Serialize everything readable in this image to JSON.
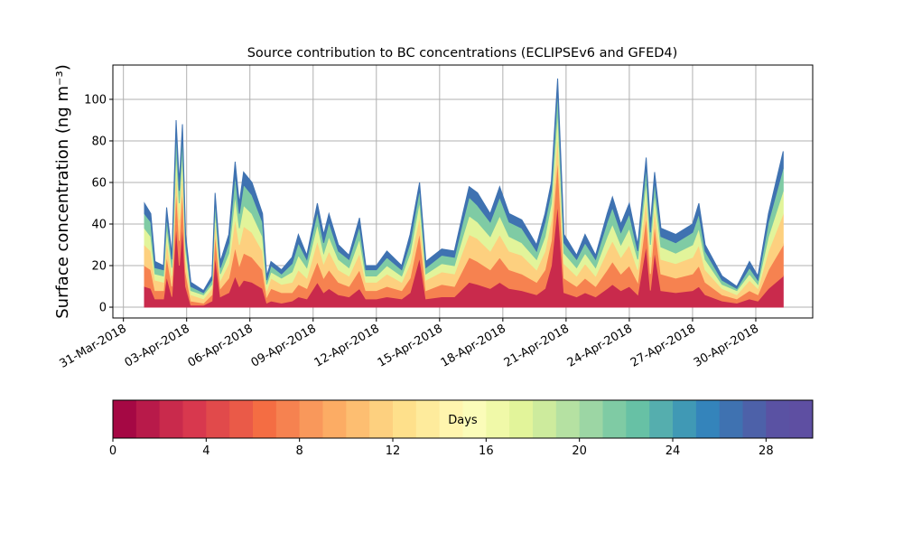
{
  "chart_data": {
    "type": "stacked_area",
    "title": "Source contribution to BC concentrations (ECLIPSEv6 and GFED4)",
    "y_label": "Surface concentration (ng m⁻³)",
    "x": [
      1.0,
      1.3,
      1.5,
      1.9,
      2.05,
      2.3,
      2.5,
      2.65,
      2.8,
      2.95,
      3.2,
      3.8,
      4.2,
      4.35,
      4.6,
      5.0,
      5.3,
      5.5,
      5.7,
      6.1,
      6.6,
      6.8,
      7.0,
      7.5,
      8.0,
      8.3,
      8.7,
      9.2,
      9.5,
      9.75,
      10.2,
      10.7,
      11.2,
      11.5,
      12.0,
      12.5,
      13.2,
      13.6,
      14.05,
      14.35,
      15.1,
      15.7,
      16.1,
      16.4,
      16.8,
      17.4,
      17.85,
      18.3,
      18.9,
      19.6,
      20.0,
      20.3,
      20.6,
      20.9,
      21.5,
      21.9,
      22.4,
      22.95,
      23.2,
      23.6,
      24.0,
      24.4,
      24.8,
      25.0,
      25.2,
      25.5,
      26.2,
      27.0,
      27.3,
      27.6,
      28.4,
      29.1,
      29.7,
      30.1,
      30.6,
      31.3
    ],
    "series": [
      {
        "color": "#c92a4c",
        "values": [
          10,
          9,
          4,
          4,
          15,
          5,
          40,
          20,
          40,
          10,
          1,
          1,
          3,
          25,
          5,
          7,
          15,
          10,
          13,
          12,
          9,
          2,
          3,
          2,
          3,
          5,
          4,
          12,
          7,
          9,
          6,
          5,
          9,
          4,
          4,
          5,
          4,
          7,
          24,
          4,
          5,
          5,
          9,
          12,
          11,
          9,
          12,
          9,
          8,
          6,
          9,
          20,
          50,
          7,
          5,
          7,
          5,
          9,
          11,
          8,
          10,
          6,
          30,
          8,
          27,
          8,
          7,
          8,
          10,
          6,
          3,
          2,
          4,
          3,
          9,
          15
        ]
      },
      {
        "color": "#f68250",
        "values": [
          10,
          9,
          4,
          4,
          10,
          5,
          18,
          12,
          18,
          7,
          2,
          1,
          3,
          11,
          4,
          7,
          14,
          10,
          13,
          12,
          9,
          3,
          6,
          5,
          4,
          6,
          5,
          10,
          7,
          9,
          6,
          5,
          9,
          4,
          4,
          5,
          4,
          7,
          12,
          4,
          6,
          5,
          9,
          12,
          11,
          9,
          12,
          9,
          8,
          6,
          9,
          12,
          22,
          7,
          5,
          7,
          5,
          9,
          11,
          8,
          10,
          6,
          14,
          8,
          13,
          8,
          7,
          8,
          10,
          6,
          3,
          2,
          4,
          3,
          9,
          15
        ]
      },
      {
        "color": "#fdd07f",
        "values": [
          10,
          9,
          5,
          4,
          8,
          5,
          9,
          10,
          9,
          6,
          3,
          2,
          3,
          6,
          4,
          7,
          14,
          10,
          13,
          12,
          9,
          3,
          5,
          4,
          5,
          7,
          5,
          10,
          7,
          9,
          6,
          5,
          8,
          4,
          4,
          6,
          4,
          7,
          8,
          5,
          6,
          6,
          9,
          11,
          11,
          9,
          11,
          9,
          9,
          6,
          9,
          10,
          12,
          7,
          5,
          7,
          5,
          9,
          10,
          8,
          10,
          6,
          9,
          8,
          8,
          7,
          7,
          8,
          10,
          6,
          3,
          2,
          5,
          3,
          9,
          15
        ]
      },
      {
        "color": "#e2f49a",
        "values": [
          8,
          7,
          3,
          3,
          6,
          4,
          9,
          8,
          9,
          5,
          2,
          2,
          2,
          5,
          3,
          5,
          11,
          8,
          10,
          9,
          7,
          3,
          3,
          3,
          5,
          7,
          5,
          8,
          5,
          7,
          5,
          4,
          7,
          3,
          3,
          4,
          3,
          5,
          7,
          3,
          4,
          4,
          7,
          9,
          8,
          7,
          9,
          7,
          6,
          5,
          7,
          8,
          11,
          5,
          4,
          5,
          4,
          7,
          8,
          6,
          8,
          5,
          8,
          6,
          7,
          6,
          5,
          6,
          8,
          5,
          2,
          2,
          3,
          2,
          7,
          11
        ]
      },
      {
        "color": "#7fcba4",
        "values": [
          7,
          7,
          3,
          3,
          5,
          4,
          9,
          6,
          8,
          4,
          2,
          1,
          2,
          5,
          3,
          5,
          10,
          7,
          10,
          9,
          7,
          2,
          3,
          2,
          4,
          6,
          4,
          6,
          5,
          7,
          4,
          4,
          6,
          3,
          3,
          4,
          3,
          5,
          6,
          3,
          4,
          4,
          7,
          9,
          8,
          7,
          9,
          7,
          7,
          4,
          7,
          6,
          10,
          5,
          4,
          5,
          4,
          7,
          8,
          6,
          7,
          4,
          7,
          6,
          6,
          5,
          5,
          6,
          7,
          4,
          2,
          1,
          3,
          2,
          7,
          11
        ]
      },
      {
        "color": "#3f72b1",
        "values": [
          5,
          4,
          3,
          2,
          4,
          2,
          5,
          4,
          4,
          3,
          2,
          1,
          2,
          3,
          3,
          4,
          6,
          5,
          6,
          6,
          4,
          2,
          2,
          2,
          3,
          4,
          2,
          4,
          4,
          4,
          3,
          2,
          4,
          2,
          2,
          3,
          2,
          4,
          3,
          3,
          3,
          3,
          4,
          5,
          6,
          4,
          5,
          4,
          4,
          3,
          4,
          4,
          5,
          4,
          2,
          4,
          2,
          4,
          5,
          4,
          5,
          3,
          4,
          4,
          4,
          4,
          4,
          4,
          5,
          3,
          2,
          1,
          3,
          2,
          4,
          8
        ]
      }
    ],
    "xlim": [
      -0.5,
      32.7
    ],
    "xticks": [
      {
        "value": 0,
        "label": "31-Mar-2018"
      },
      {
        "value": 3,
        "label": "03-Apr-2018"
      },
      {
        "value": 6,
        "label": "06-Apr-2018"
      },
      {
        "value": 9,
        "label": "09-Apr-2018"
      },
      {
        "value": 12,
        "label": "12-Apr-2018"
      },
      {
        "value": 15,
        "label": "15-Apr-2018"
      },
      {
        "value": 18,
        "label": "18-Apr-2018"
      },
      {
        "value": 21,
        "label": "21-Apr-2018"
      },
      {
        "value": 24,
        "label": "24-Apr-2018"
      },
      {
        "value": 27,
        "label": "27-Apr-2018"
      },
      {
        "value": 30,
        "label": "30-Apr-2018"
      }
    ],
    "ylim": [
      -5.2,
      116.5
    ],
    "yticks": [
      0,
      20,
      40,
      60,
      80,
      100
    ],
    "grid": true,
    "colorbar": {
      "label": "Days",
      "lim": [
        0,
        30
      ],
      "ticks": [
        0,
        4,
        8,
        12,
        16,
        20,
        24,
        28
      ],
      "colors": [
        "#a50844",
        "#b81a4a",
        "#c92a4c",
        "#d8384e",
        "#e14a4b",
        "#ea5a48",
        "#f46d43",
        "#f68250",
        "#f9985b",
        "#fcac64",
        "#fdbe71",
        "#fdd07f",
        "#fee08b",
        "#feeb9c",
        "#fff5ae",
        "#fbfcb9",
        "#f0f9a8",
        "#e2f49a",
        "#cdeb9d",
        "#b5e1a2",
        "#9cd6a4",
        "#7fcba4",
        "#67c1a5",
        "#55aeae",
        "#4099b5",
        "#3484bb",
        "#3f72b1",
        "#4d61a9",
        "#5a52a3",
        "#5e4fa2"
      ]
    }
  }
}
